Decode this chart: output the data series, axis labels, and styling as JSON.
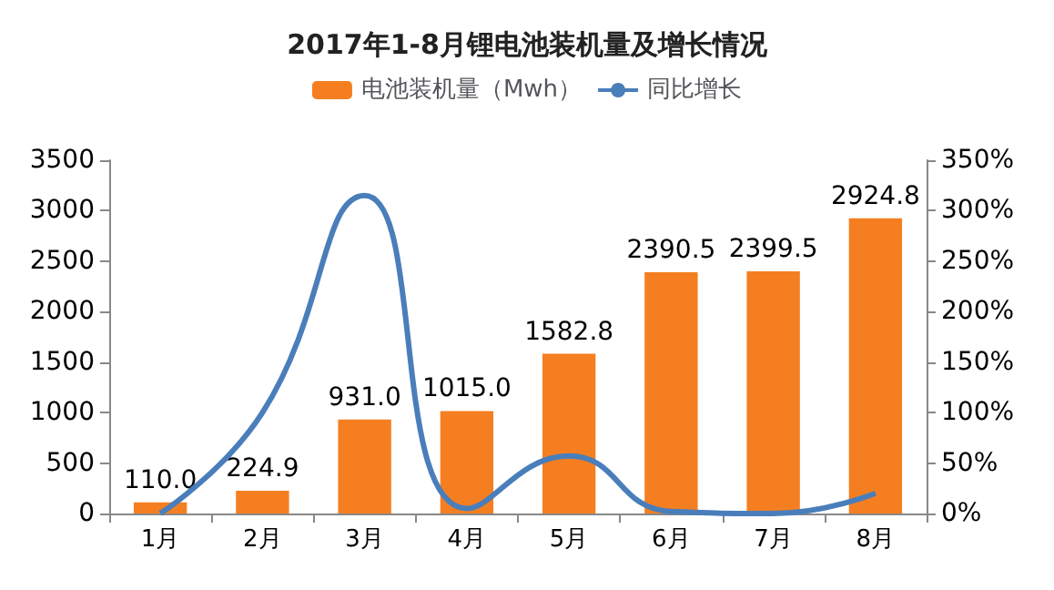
{
  "chart_data": {
    "type": "bar",
    "title": "2017年1-8月锂电池装机量及增长情况",
    "categories": [
      "1月",
      "2月",
      "3月",
      "4月",
      "5月",
      "6月",
      "7月",
      "8月"
    ],
    "series": [
      {
        "name": "电池装机量（Mwh）",
        "color": "#f57f20",
        "values": [
          110.0,
          224.9,
          931.0,
          1015.0,
          1582.8,
          2390.5,
          2399.5,
          2924.8
        ],
        "value_labels": [
          "110.0",
          "224.9",
          "931.0",
          "1015.0",
          "1582.8",
          "2390.5",
          "2399.5",
          "2924.8"
        ]
      },
      {
        "name": "同比增长",
        "type": "line",
        "axis": "y2",
        "color": "#4a7ebb",
        "values": [
          0,
          100,
          315,
          5,
          57,
          2,
          0,
          20
        ]
      }
    ],
    "ylim": [
      0,
      3500
    ],
    "yticks": [
      0,
      500,
      1000,
      1500,
      2000,
      2500,
      3000,
      3500
    ],
    "y2lim": [
      0,
      350
    ],
    "y2ticks": [
      {
        "value": 0,
        "label": "0%"
      },
      {
        "value": 50,
        "label": "50%"
      },
      {
        "value": 100,
        "label": "100%"
      },
      {
        "value": 150,
        "label": "150%"
      },
      {
        "value": 200,
        "label": "200%"
      },
      {
        "value": 250,
        "label": "250%"
      },
      {
        "value": 300,
        "label": "300%"
      },
      {
        "value": 350,
        "label": "350%"
      }
    ],
    "legend": "top",
    "grid": false,
    "marker": "none",
    "line_style": "solid"
  }
}
